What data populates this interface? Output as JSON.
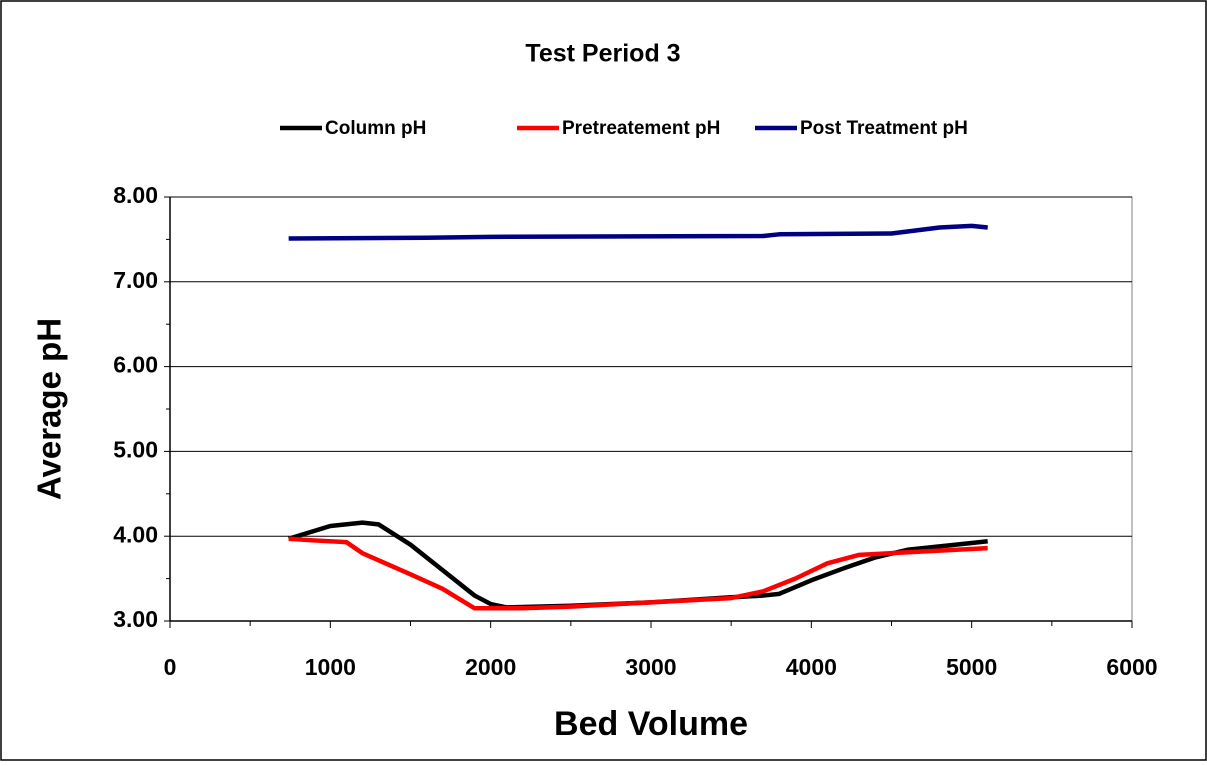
{
  "chart_data": {
    "type": "line",
    "title": "Test Period 3",
    "x_label": "Bed Volume",
    "y_label": "Average pH",
    "xlim": [
      0,
      6000
    ],
    "xticks": [
      0,
      1000,
      2000,
      3000,
      4000,
      5000,
      6000
    ],
    "ylim": [
      3,
      8
    ],
    "yticks": [
      {
        "value": 3,
        "label": "3.00"
      },
      {
        "value": 4,
        "label": "4.00"
      },
      {
        "value": 5,
        "label": "5.00"
      },
      {
        "value": 6,
        "label": "6.00"
      },
      {
        "value": 7,
        "label": "7.00"
      },
      {
        "value": 8,
        "label": "8.00"
      }
    ],
    "grid": true,
    "legend": "top",
    "series": [
      {
        "name": "Column pH",
        "color": "#000000",
        "x": [
          740,
          1000,
          1200,
          1300,
          1500,
          1700,
          1900,
          2000,
          2100,
          2500,
          3000,
          3500,
          3700,
          3800,
          4000,
          4200,
          4400,
          4600,
          4800,
          5000,
          5100
        ],
        "values": [
          3.97,
          4.12,
          4.16,
          4.14,
          3.9,
          3.6,
          3.3,
          3.2,
          3.16,
          3.18,
          3.22,
          3.28,
          3.3,
          3.32,
          3.48,
          3.62,
          3.75,
          3.84,
          3.88,
          3.92,
          3.94
        ]
      },
      {
        "name": "Pretreatement pH",
        "color": "#ff0000",
        "x": [
          740,
          900,
          1100,
          1200,
          1500,
          1700,
          1900,
          2000,
          2200,
          2500,
          3000,
          3500,
          3700,
          3900,
          4100,
          4300,
          4500,
          4800,
          5100
        ],
        "values": [
          3.97,
          3.95,
          3.93,
          3.8,
          3.55,
          3.38,
          3.15,
          3.15,
          3.15,
          3.17,
          3.22,
          3.27,
          3.35,
          3.5,
          3.68,
          3.78,
          3.8,
          3.83,
          3.86
        ]
      },
      {
        "name": "Post Treatment pH",
        "color": "#000080",
        "x": [
          740,
          1600,
          2000,
          3700,
          3800,
          4500,
          4800,
          5000,
          5100
        ],
        "values": [
          7.51,
          7.52,
          7.53,
          7.54,
          7.56,
          7.57,
          7.64,
          7.66,
          7.64
        ]
      }
    ]
  }
}
